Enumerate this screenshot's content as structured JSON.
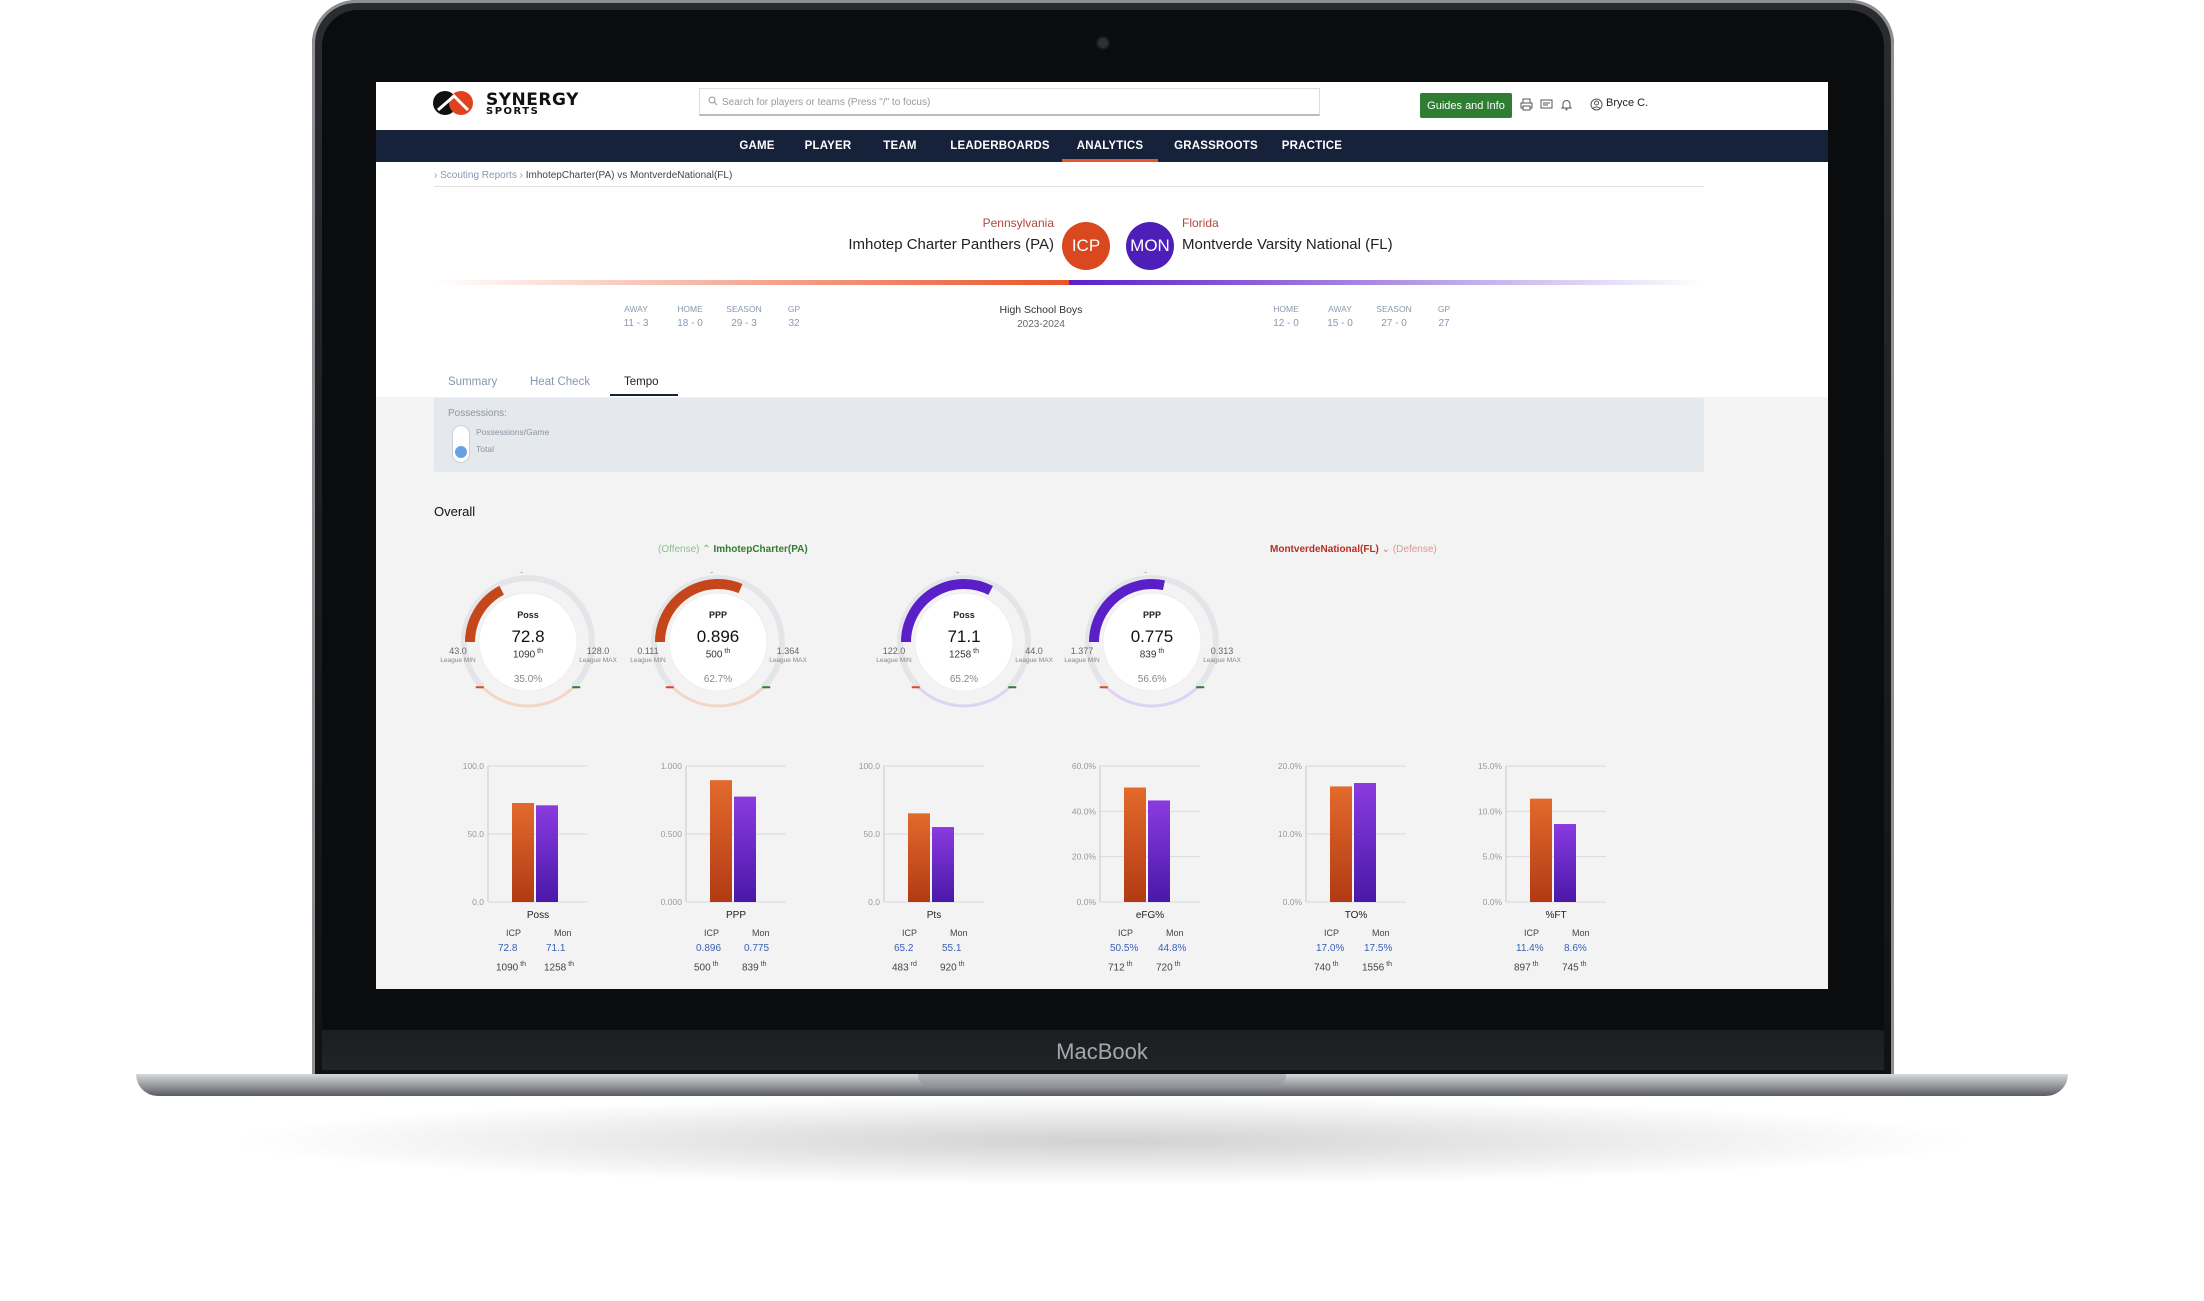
{
  "device": {
    "brand": "MacBook"
  },
  "header": {
    "logo_line1": "SYNERGY",
    "logo_line2": "SPORTS",
    "search_placeholder": "Search for players or teams (Press \"/\" to focus)",
    "guides_label": "Guides and Info",
    "user_name": "Bryce C."
  },
  "nav": [
    "GAME",
    "PLAYER",
    "TEAM",
    "LEADERBOARDS",
    "ANALYTICS",
    "GRASSROOTS",
    "PRACTICE"
  ],
  "nav_active": "ANALYTICS",
  "breadcrumb": {
    "parent": "Scouting Reports",
    "current": "ImhotepCharter(PA) vs MontverdeNational(FL)"
  },
  "teams": {
    "home": {
      "state": "Pennsylvania",
      "name": "Imhotep Charter Panthers (PA)",
      "abbr": "ICP",
      "color": "#d9481f",
      "record": [
        {
          "label": "AWAY",
          "value": "11 - 3"
        },
        {
          "label": "HOME",
          "value": "18 - 0"
        },
        {
          "label": "SEASON",
          "value": "29 - 3"
        },
        {
          "label": "GP",
          "value": "32"
        }
      ]
    },
    "away": {
      "state": "Florida",
      "name": "Montverde Varsity National (FL)",
      "abbr": "MON",
      "color": "#4d1fb8",
      "record": [
        {
          "label": "HOME",
          "value": "12 - 0"
        },
        {
          "label": "AWAY",
          "value": "15 - 0"
        },
        {
          "label": "SEASON",
          "value": "27 - 0"
        },
        {
          "label": "GP",
          "value": "27"
        }
      ]
    }
  },
  "event": {
    "level": "High School Boys",
    "season": "2023-2024"
  },
  "tabs": [
    "Summary",
    "Heat Check",
    "Tempo"
  ],
  "tab_active": "Tempo",
  "possessions": {
    "title": "Possessions:",
    "options": [
      "Possessions/Game",
      "Total"
    ]
  },
  "overall_title": "Overall",
  "left_header": {
    "role": "(Offense)",
    "team": "ImhotepCharter(PA)"
  },
  "right_header": {
    "team": "MontverdeNational(FL)",
    "role": "(Defense)"
  },
  "colors": {
    "orange": "#d9481f",
    "purple": "#5a1fc8",
    "green": "#2f7d32",
    "navy": "#16213a"
  },
  "gauges": [
    {
      "label": "Poss",
      "value": "72.8",
      "rank": "1090",
      "rank_suffix": "th",
      "pct": "35.0%",
      "pct_value": 35.0,
      "min": "43.0",
      "max": "128.0",
      "min_label": "League MIN",
      "max_label": "League MAX",
      "color": "#c4461a"
    },
    {
      "label": "PPP",
      "value": "0.896",
      "rank": "500",
      "rank_suffix": "th",
      "pct": "62.7%",
      "pct_value": 62.7,
      "min": "0.111",
      "max": "1.364",
      "min_label": "League MIN",
      "max_label": "League MAX",
      "color": "#c4461a"
    },
    {
      "label": "Poss",
      "value": "71.1",
      "rank": "1258",
      "rank_suffix": "th",
      "pct": "65.2%",
      "pct_value": 65.2,
      "min": "122.0",
      "max": "44.0",
      "min_label": "League MIN",
      "max_label": "League MAX",
      "color": "#5a1fc8"
    },
    {
      "label": "PPP",
      "value": "0.775",
      "rank": "839",
      "rank_suffix": "th",
      "pct": "56.6%",
      "pct_value": 56.6,
      "min": "1.377",
      "max": "0.313",
      "min_label": "League MIN",
      "max_label": "League MAX",
      "color": "#5a1fc8"
    }
  ],
  "chart_data": [
    {
      "type": "bar",
      "title": "Poss",
      "categories": [
        "ICP",
        "Mon"
      ],
      "values": [
        72.8,
        71.1
      ],
      "ylim": [
        0,
        100
      ],
      "ticks": [
        "100.0",
        "50.0",
        "0.0"
      ],
      "tick_values": [
        100,
        50,
        0
      ],
      "display": [
        "72.8",
        "71.1"
      ],
      "ranks": [
        "1090",
        "1258"
      ],
      "rank_suffix": [
        "th",
        "th"
      ]
    },
    {
      "type": "bar",
      "title": "PPP",
      "categories": [
        "ICP",
        "Mon"
      ],
      "values": [
        0.896,
        0.775
      ],
      "ylim": [
        0,
        1
      ],
      "ticks": [
        "1.000",
        "0.500",
        "0.000"
      ],
      "tick_values": [
        1,
        0.5,
        0
      ],
      "display": [
        "0.896",
        "0.775"
      ],
      "ranks": [
        "500",
        "839"
      ],
      "rank_suffix": [
        "th",
        "th"
      ]
    },
    {
      "type": "bar",
      "title": "Pts",
      "categories": [
        "ICP",
        "Mon"
      ],
      "values": [
        65.2,
        55.1
      ],
      "ylim": [
        0,
        100
      ],
      "ticks": [
        "100.0",
        "50.0",
        "0.0"
      ],
      "tick_values": [
        100,
        50,
        0
      ],
      "display": [
        "65.2",
        "55.1"
      ],
      "ranks": [
        "483",
        "920"
      ],
      "rank_suffix": [
        "rd",
        "th"
      ]
    },
    {
      "type": "bar",
      "title": "eFG%",
      "categories": [
        "ICP",
        "Mon"
      ],
      "values": [
        50.5,
        44.8
      ],
      "ylim": [
        0,
        60
      ],
      "ticks": [
        "60.0%",
        "40.0%",
        "20.0%",
        "0.0%"
      ],
      "tick_values": [
        60,
        40,
        20,
        0
      ],
      "display": [
        "50.5%",
        "44.8%"
      ],
      "ranks": [
        "712",
        "720"
      ],
      "rank_suffix": [
        "th",
        "th"
      ]
    },
    {
      "type": "bar",
      "title": "TO%",
      "categories": [
        "ICP",
        "Mon"
      ],
      "values": [
        17.0,
        17.5
      ],
      "ylim": [
        0,
        20
      ],
      "ticks": [
        "20.0%",
        "10.0%",
        "0.0%"
      ],
      "tick_values": [
        20,
        10,
        0
      ],
      "display": [
        "17.0%",
        "17.5%"
      ],
      "ranks": [
        "740",
        "1556"
      ],
      "rank_suffix": [
        "th",
        "th"
      ]
    },
    {
      "type": "bar",
      "title": "%FT",
      "categories": [
        "ICP",
        "Mon"
      ],
      "values": [
        11.4,
        8.6
      ],
      "ylim": [
        0,
        15
      ],
      "ticks": [
        "15.0%",
        "10.0%",
        "5.0%",
        "0.0%"
      ],
      "tick_values": [
        15,
        10,
        5,
        0
      ],
      "display": [
        "11.4%",
        "8.6%"
      ],
      "ranks": [
        "897",
        "745"
      ],
      "rank_suffix": [
        "th",
        "th"
      ]
    }
  ]
}
